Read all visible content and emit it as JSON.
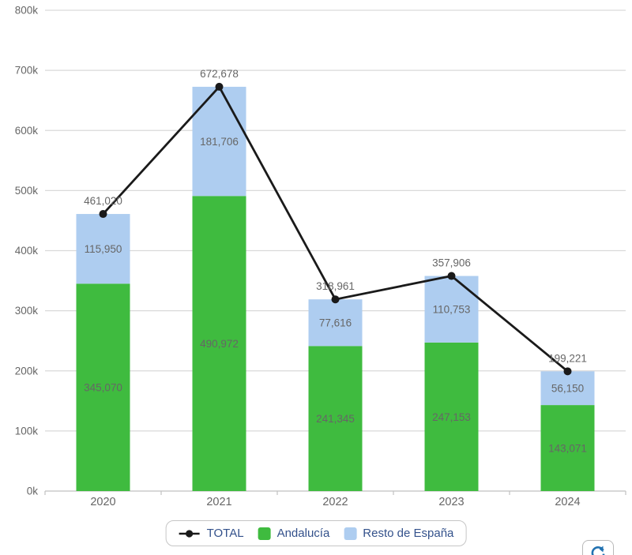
{
  "chart_data": {
    "type": "bar",
    "stacked": true,
    "overlay": "line",
    "title": "",
    "xlabel": "",
    "ylabel": "",
    "categories": [
      "2020",
      "2021",
      "2022",
      "2023",
      "2024"
    ],
    "series": [
      {
        "name": "TOTAL",
        "kind": "line",
        "values": [
          461020,
          672678,
          318961,
          357906,
          199221
        ],
        "color": "#1a1a1a"
      },
      {
        "name": "Andalucía",
        "kind": "bar",
        "values": [
          345070,
          490972,
          241345,
          247153,
          143071
        ],
        "color": "#3fbb3f"
      },
      {
        "name": "Resto de España",
        "kind": "bar",
        "values": [
          115950,
          181706,
          77616,
          110753,
          56150
        ],
        "color": "#aecdf0"
      }
    ],
    "ylim": [
      0,
      800000
    ],
    "ytick_step": 100000,
    "ytick_labels": [
      "0k",
      "100k",
      "200k",
      "300k",
      "400k",
      "500k",
      "600k",
      "700k",
      "800k"
    ],
    "grid": true,
    "legend_position": "bottom",
    "data_label_color": "#666666",
    "axis_text_color": "#666666",
    "grid_color": "#d9d9d9",
    "axis_line_color": "#c0c0c0"
  },
  "legend": {
    "text_color": "#33518b",
    "items": [
      {
        "label": "TOTAL",
        "marker": "line-dot",
        "color": "#1a1a1a"
      },
      {
        "label": "Andalucía",
        "marker": "square",
        "color": "#3fbb3f"
      },
      {
        "label": "Resto de España",
        "marker": "square",
        "color": "#aecdf0"
      }
    ]
  },
  "controls": {
    "refresh_button": {
      "icon": "refresh-icon",
      "icon_color": "#2272b1"
    }
  }
}
